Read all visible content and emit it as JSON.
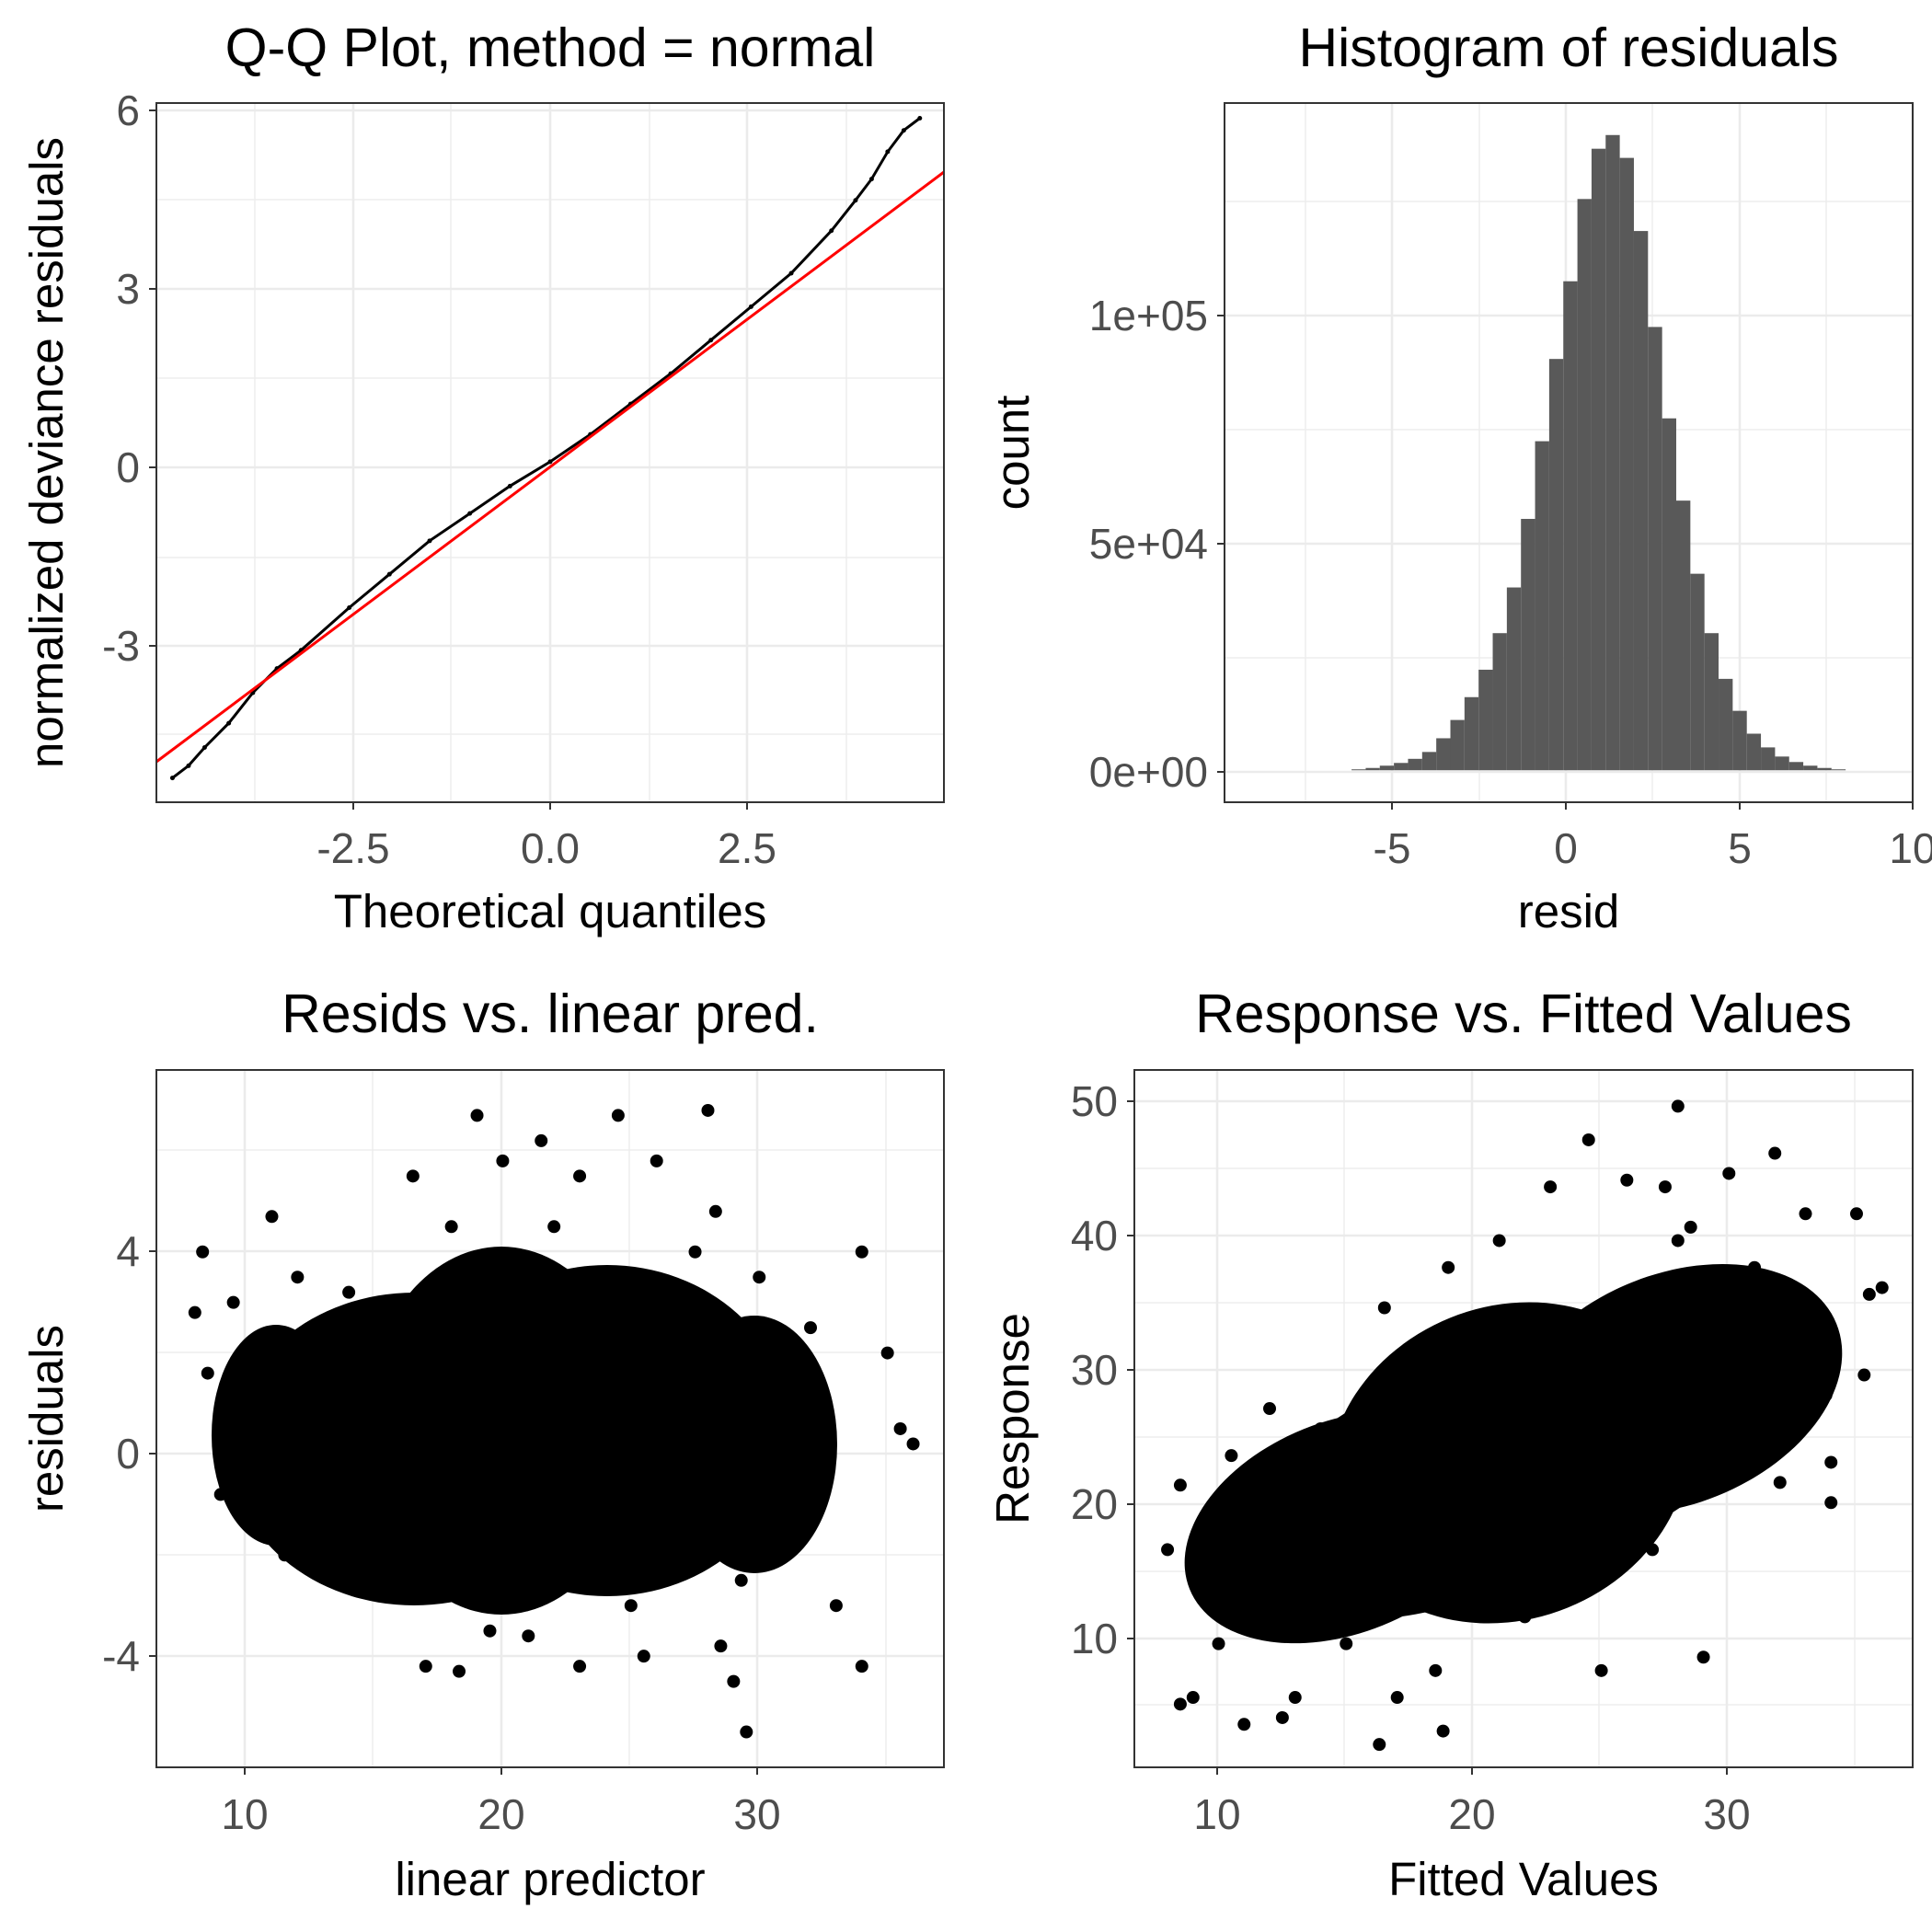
{
  "chart_data": [
    {
      "id": "qq",
      "type": "line",
      "title": "Q-Q Plot, method = normal",
      "xlabel": "Theoretical quantiles",
      "ylabel": "normalized deviance residuals",
      "xlim": [
        -4.9,
        4.9
      ],
      "ylim": [
        -5.5,
        6.0
      ],
      "x_ticks": [
        -2.5,
        0.0,
        2.5
      ],
      "x_tick_labels": [
        "-2.5",
        "0.0",
        "2.5"
      ],
      "y_ticks": [
        -3,
        0,
        3,
        6
      ],
      "y_tick_labels": [
        "-3",
        "0",
        "3",
        "6"
      ],
      "grid": true,
      "series": [
        {
          "kind": "points",
          "color": "#000000",
          "x": [
            -4.7,
            -4.5,
            -4.3,
            -4.0,
            -3.7,
            -3.4,
            -3.1,
            -2.5,
            -2.0,
            -1.5,
            -1.0,
            -0.5,
            0.0,
            0.5,
            1.0,
            1.5,
            2.0,
            2.5,
            3.0,
            3.5,
            3.8,
            4.0,
            4.2,
            4.4,
            4.6
          ],
          "y": [
            -5.1,
            -4.9,
            -4.6,
            -4.2,
            -3.7,
            -3.3,
            -3.0,
            -2.3,
            -1.75,
            -1.2,
            -0.75,
            -0.3,
            0.1,
            0.55,
            1.05,
            1.55,
            2.1,
            2.65,
            3.2,
            3.9,
            4.4,
            4.75,
            5.2,
            5.55,
            5.75
          ]
        },
        {
          "kind": "reference-line",
          "color": "#ff0000",
          "x": [
            -4.9,
            4.9
          ],
          "y": [
            -4.9,
            4.9
          ]
        }
      ]
    },
    {
      "id": "hist",
      "type": "bar",
      "title": "Histogram of residuals",
      "xlabel": "resid",
      "ylabel": "count",
      "xlim": [
        -9.2,
        10.3
      ],
      "ylim": [
        -7000,
        146000
      ],
      "x_ticks": [
        -5,
        0,
        5,
        10
      ],
      "x_tick_labels": [
        "-5",
        "0",
        "5",
        "10"
      ],
      "y_ticks": [
        0,
        50000,
        100000
      ],
      "y_tick_labels": [
        "0e+00",
        "5e+04",
        "1e+05"
      ],
      "grid": true,
      "bar_color": "#595959",
      "bin_width": 0.4,
      "bin_start": -5.6,
      "values": [
        200,
        500,
        1000,
        1600,
        2500,
        4000,
        7000,
        11000,
        16000,
        22000,
        30000,
        40000,
        55000,
        72000,
        90000,
        107000,
        125000,
        136000,
        139000,
        134000,
        118000,
        97000,
        77000,
        59000,
        43000,
        30000,
        20000,
        13000,
        8000,
        5000,
        3000,
        1800,
        1000,
        500,
        200
      ]
    },
    {
      "id": "resid-vs-lp",
      "type": "scatter",
      "title": "Resids vs. linear pred.",
      "xlabel": "linear predictor",
      "ylabel": "residuals",
      "xlim": [
        6.5,
        37.2
      ],
      "ylim": [
        -6.2,
        7.6
      ],
      "x_ticks": [
        10,
        20,
        30
      ],
      "x_tick_labels": [
        "10",
        "20",
        "30"
      ],
      "y_ticks": [
        -4,
        0,
        4
      ],
      "y_tick_labels": [
        "-4",
        "0",
        "4"
      ],
      "grid": true,
      "point_color": "#000000",
      "x": [
        8.0,
        8.3,
        8.5,
        9.0,
        9.5,
        10.0,
        10.5,
        11.0,
        11.5,
        12.0,
        13.0,
        14.0,
        15.0,
        16.0,
        16.5,
        17.0,
        18.0,
        18.3,
        19.0,
        19.5,
        20.0,
        20.5,
        21.0,
        22.0,
        23.0,
        24.0,
        24.5,
        25.0,
        26.0,
        27.0,
        28.0,
        28.3,
        29.0,
        29.5,
        30.0,
        31.0,
        32.0,
        33.0,
        34.0,
        35.0,
        35.5,
        36.0,
        18.0,
        19.0,
        24.5,
        28.5,
        21.5,
        25.5,
        23.0,
        21.0,
        27.5,
        29.3,
        24.5,
        16.5,
        18.5,
        12.0,
        34.0
      ],
      "y": [
        2.8,
        4.0,
        1.6,
        -0.8,
        3.0,
        0.5,
        -1.0,
        4.7,
        -2.0,
        2.0,
        -1.5,
        3.2,
        0.2,
        -2.5,
        5.5,
        -4.2,
        1.0,
        -4.3,
        6.7,
        -3.5,
        5.8,
        0.0,
        -2.8,
        4.5,
        -4.2,
        2.2,
        6.7,
        -3.0,
        5.8,
        -1.2,
        6.8,
        4.8,
        -4.5,
        -5.5,
        3.5,
        -2.0,
        2.5,
        -3.0,
        4.0,
        2.0,
        0.5,
        0.2,
        4.5,
        3.8,
        -1.5,
        -3.8,
        6.2,
        -4.0,
        5.5,
        -3.6,
        4.0,
        -2.5,
        3.0,
        -2.0,
        2.7,
        3.5,
        -4.2
      ]
    },
    {
      "id": "resp-vs-fitted",
      "type": "scatter",
      "title": "Response vs. Fitted Values",
      "xlabel": "Fitted Values",
      "ylabel": "Response",
      "xlim": [
        6.7,
        37.2
      ],
      "ylim": [
        0.8,
        52.7
      ],
      "x_ticks": [
        10,
        20,
        30
      ],
      "x_tick_labels": [
        "10",
        "20",
        "30"
      ],
      "y_ticks": [
        10,
        20,
        30,
        40,
        50
      ],
      "y_tick_labels": [
        "10",
        "20",
        "30",
        "40",
        "50"
      ],
      "grid": true,
      "point_color": "#000000",
      "x": [
        8.0,
        8.5,
        9.0,
        9.5,
        10.0,
        10.5,
        11.0,
        11.5,
        12.0,
        13.0,
        14.0,
        15.0,
        16.0,
        16.5,
        17.0,
        18.0,
        18.5,
        19.0,
        20.0,
        21.0,
        22.0,
        23.0,
        24.0,
        24.5,
        25.0,
        26.0,
        27.0,
        28.0,
        28.5,
        29.0,
        30.0,
        31.0,
        32.0,
        33.0,
        34.0,
        35.0,
        35.5,
        36.0,
        8.5,
        12.5,
        18.8,
        24.5,
        28.0,
        30.5,
        33.8,
        35.3,
        34.0,
        29.0,
        16.3,
        27.5,
        31.8,
        25.5,
        22.0,
        14.0
      ],
      "y": [
        17.0,
        21.8,
        6.0,
        14.0,
        10.0,
        24.0,
        4.0,
        18.0,
        27.5,
        6.0,
        20.0,
        10.0,
        23.0,
        35.0,
        6.0,
        30.0,
        8.0,
        38.0,
        15.0,
        40.0,
        12.0,
        44.0,
        22.0,
        47.5,
        8.0,
        44.5,
        17.0,
        50.0,
        41.0,
        9.0,
        45.0,
        38.0,
        22.0,
        42.0,
        20.5,
        42.0,
        36.0,
        36.5,
        5.5,
        4.5,
        3.5,
        29.0,
        40.0,
        24.0,
        28.5,
        30.0,
        23.5,
        33.0,
        2.5,
        44.0,
        46.5,
        26.0,
        31.0,
        26.0
      ]
    }
  ]
}
